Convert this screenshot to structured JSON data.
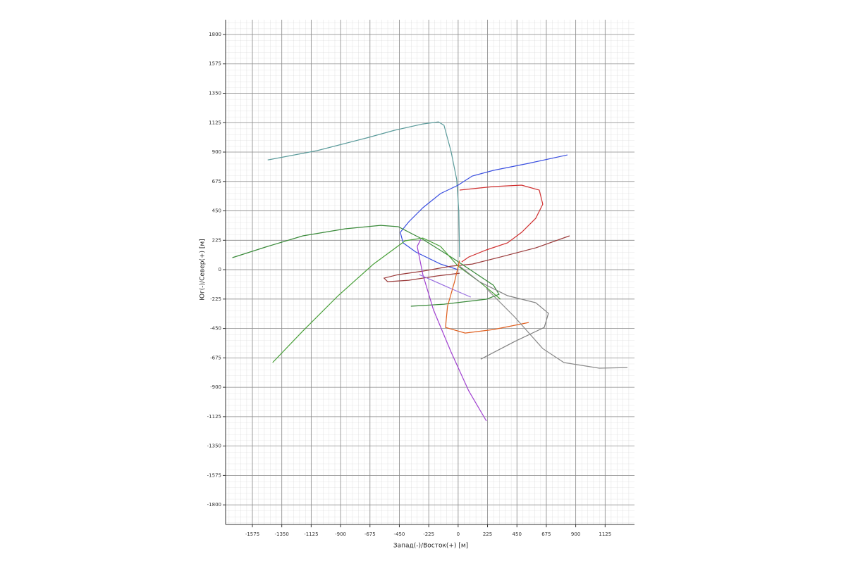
{
  "chart_data": {
    "type": "line",
    "x_label": "Запад(-)/Восток(+) [м]",
    "y_label": "Юг(-)/Север(+)  [м]",
    "xlim": [
      -1780,
      1350
    ],
    "ylim": [
      -1950,
      1913
    ],
    "xticks": [
      -1575,
      -1350,
      -1125,
      -900,
      -675,
      -450,
      -225,
      0,
      225,
      450,
      675,
      900,
      1125
    ],
    "yticks": [
      1800,
      1575,
      1350,
      1125,
      900,
      675,
      450,
      225,
      0,
      -225,
      -450,
      -675,
      -900,
      -1125,
      -1350,
      -1575,
      -1800
    ],
    "grid": true,
    "minor_grid": true,
    "series": [
      {
        "color": "#5b9b9b",
        "x": [
          -1458,
          -1080,
          -702,
          -486,
          -270,
          -151,
          -108,
          -54,
          -11,
          5,
          11
        ],
        "values": [
          840,
          911,
          1008,
          1067,
          1115,
          1131,
          1105,
          905,
          690,
          447,
          97
        ]
      },
      {
        "color": "#3a4fe0",
        "x": [
          837,
          540,
          270,
          108,
          0,
          -135,
          -270,
          -378,
          -443,
          -421,
          -324,
          -135,
          0
        ],
        "values": [
          878,
          814,
          760,
          717,
          647,
          582,
          474,
          366,
          286,
          205,
          135,
          43,
          0
        ]
      },
      {
        "color": "#d03030",
        "x": [
          11,
          270,
          486,
          621,
          648,
          594,
          486,
          378,
          216,
          81,
          27
        ],
        "values": [
          609,
          636,
          647,
          609,
          501,
          393,
          286,
          205,
          151,
          97,
          59
        ]
      },
      {
        "color": "#9a3a3a",
        "x": [
          853,
          594,
          324,
          108,
          -54,
          -270,
          -459,
          -567,
          -540,
          -378,
          -162,
          11
        ],
        "values": [
          259,
          167,
          97,
          43,
          27,
          -11,
          -38,
          -65,
          -92,
          -81,
          -48,
          -27
        ]
      },
      {
        "color": "#3a8a3a",
        "x": [
          -1728,
          -1458,
          -1188,
          -864,
          -594,
          -459,
          -270,
          -54,
          108,
          270,
          313,
          216,
          -108,
          -362
        ],
        "values": [
          92,
          178,
          259,
          313,
          339,
          329,
          232,
          97,
          -11,
          -119,
          -189,
          -226,
          -264,
          -280
        ]
      },
      {
        "color": "#4aa03a",
        "x": [
          -1420,
          -1188,
          -918,
          -648,
          -405,
          -270,
          -135,
          0,
          162,
          324
        ],
        "values": [
          -711,
          -469,
          -199,
          43,
          221,
          242,
          178,
          27,
          -92,
          -226
        ]
      },
      {
        "color": "#a040d0",
        "x": [
          -286,
          -313,
          -270,
          -189,
          -54,
          81,
          216
        ],
        "values": [
          232,
          178,
          -38,
          -307,
          -630,
          -927,
          -1158
        ]
      },
      {
        "color": "#9a70e0",
        "x": [
          -297,
          -54,
          97
        ],
        "values": [
          -38,
          -145,
          -210
        ]
      },
      {
        "color": "#e06020",
        "x": [
          11,
          -27,
          -81,
          -97,
          54,
          270,
          540
        ],
        "values": [
          70,
          -92,
          -280,
          -442,
          -485,
          -458,
          -404
        ]
      },
      {
        "color": "#808080",
        "x": [
          11,
          162,
          378,
          594,
          691,
          659,
          432,
          173
        ],
        "values": [
          27,
          -92,
          -199,
          -253,
          -334,
          -442,
          -550,
          -685
        ]
      },
      {
        "color": "#8a8a8a",
        "x": [
          216,
          432,
          648,
          810,
          1080,
          1296
        ],
        "values": [
          -145,
          -361,
          -604,
          -711,
          -754,
          -749
        ]
      }
    ]
  }
}
